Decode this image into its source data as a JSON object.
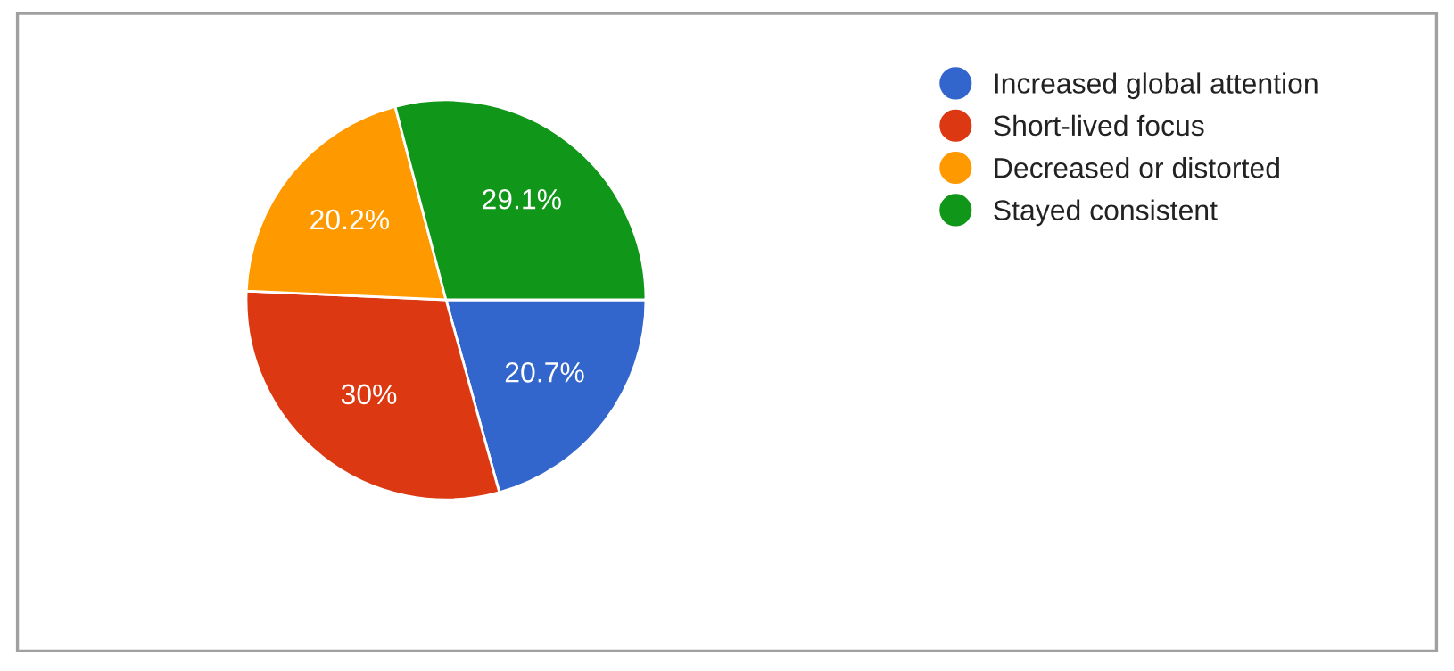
{
  "chart_data": {
    "type": "pie",
    "categories": [
      "Increased global attention",
      "Short-lived focus",
      "Decreased or distorted",
      "Stayed consistent"
    ],
    "values": [
      20.7,
      30,
      20.2,
      29.1
    ],
    "colors": [
      "#3366cc",
      "#dc3912",
      "#ff9900",
      "#109618"
    ],
    "value_labels": [
      "20.7%",
      "30%",
      "20.2%",
      "29.1%"
    ],
    "legend": "top right"
  }
}
